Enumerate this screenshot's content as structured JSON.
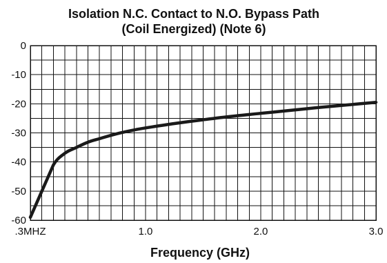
{
  "chart_data": {
    "type": "line",
    "title": "Isolation N.C. Contact to N.O. Bypass Path",
    "subtitle": "(Coil Energized) (Note 6)",
    "xlabel": "Frequency (GHz)",
    "ylabel": "",
    "xlim": [
      0.0003,
      3.0
    ],
    "ylim": [
      -60,
      0
    ],
    "grid": true,
    "xticks": [
      {
        "value": 0.0003,
        "label": ".3MHZ"
      },
      {
        "value": 1.0,
        "label": "1.0"
      },
      {
        "value": 2.0,
        "label": "2.0"
      },
      {
        "value": 3.0,
        "label": "3.0"
      }
    ],
    "yticks": [
      {
        "value": 0,
        "label": "0"
      },
      {
        "value": -10,
        "label": "-10"
      },
      {
        "value": -20,
        "label": "-20"
      },
      {
        "value": -30,
        "label": "-30"
      },
      {
        "value": -40,
        "label": "-40"
      },
      {
        "value": -50,
        "label": "-50"
      },
      {
        "value": -60,
        "label": "-60"
      }
    ],
    "series": [
      {
        "x": [
          0.0003,
          0.1,
          0.2,
          0.3,
          0.4,
          0.5,
          0.6,
          0.75,
          0.9,
          1.0,
          1.25,
          1.5,
          1.75,
          2.0,
          2.25,
          2.5,
          2.75,
          3.0
        ],
        "y": [
          -59,
          -50,
          -41,
          -37,
          -35,
          -33.2,
          -32,
          -30.3,
          -29,
          -28.3,
          -26.8,
          -25.5,
          -24.3,
          -23.3,
          -22.3,
          -21.3,
          -20.4,
          -19.5
        ]
      }
    ],
    "colors": {
      "line": "#1a1a1a",
      "grid": "#111111"
    }
  }
}
